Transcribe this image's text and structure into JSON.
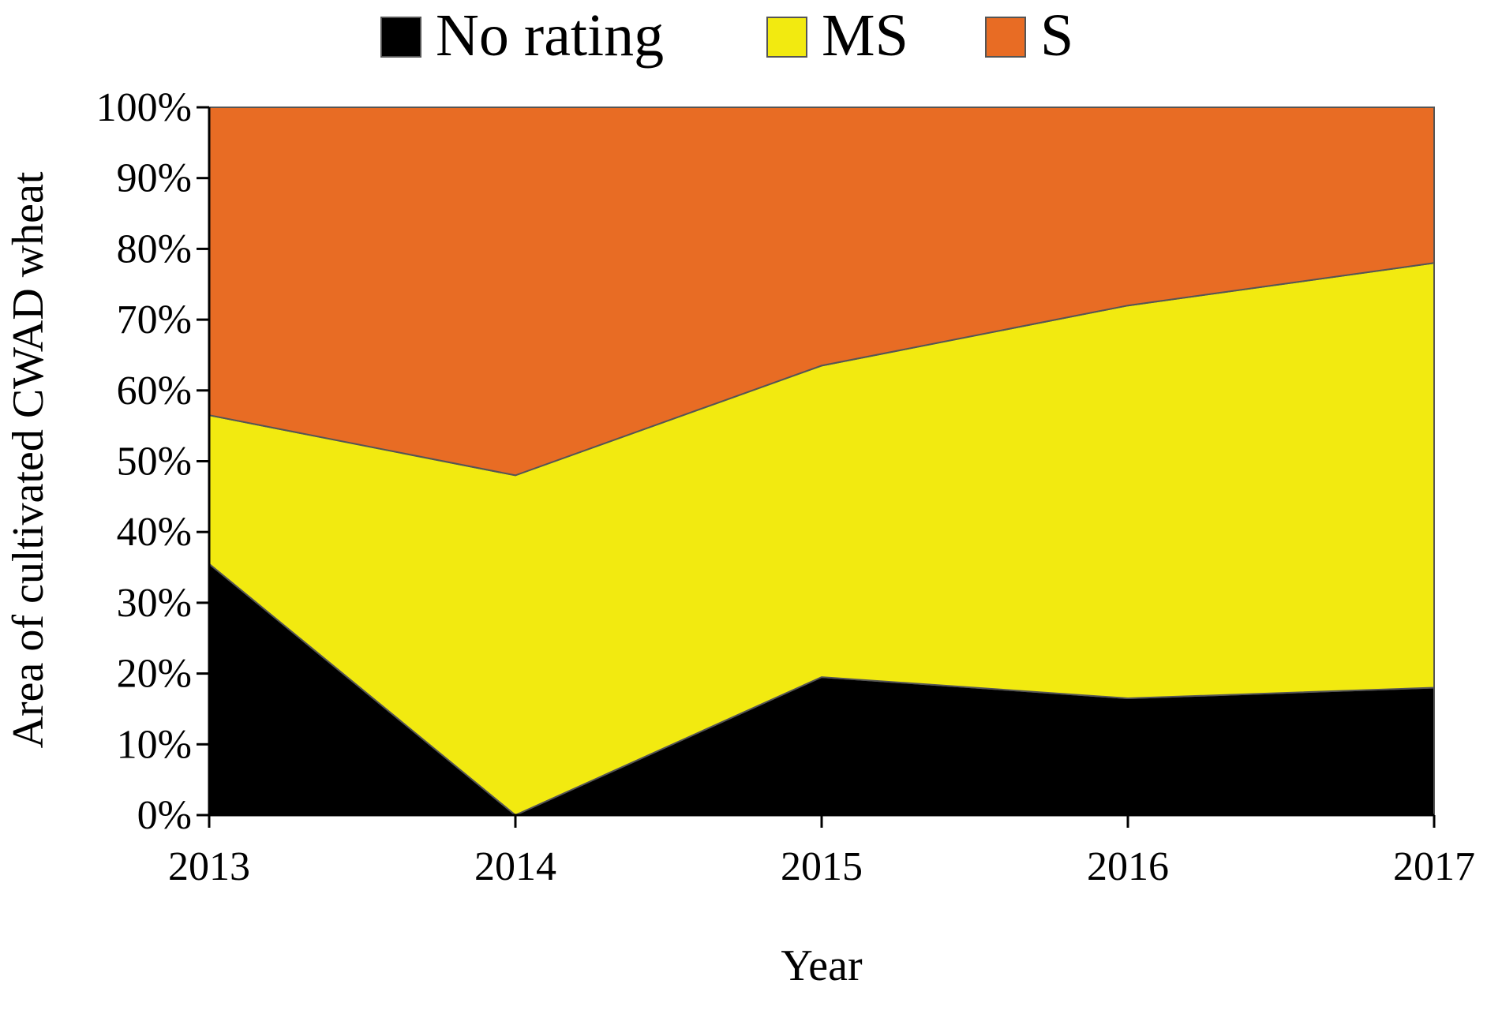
{
  "chart_data": {
    "type": "area",
    "stacked": true,
    "percent": true,
    "categories": [
      "2013",
      "2014",
      "2015",
      "2016",
      "2017"
    ],
    "series": [
      {
        "name": "No rating",
        "color": "#000000",
        "values": [
          35.5,
          0,
          19.5,
          16.5,
          18
        ]
      },
      {
        "name": "MS",
        "color": "#f2ea10",
        "values": [
          21,
          48,
          44,
          55.5,
          60
        ]
      },
      {
        "name": "S",
        "color": "#e86c24",
        "values": [
          43.5,
          52,
          36.5,
          28,
          22
        ]
      }
    ],
    "title": "",
    "xlabel": "Year",
    "ylabel": "Area of cultivated CWAD wheat",
    "ylim": [
      0,
      100
    ],
    "yticks": [
      "0%",
      "10%",
      "20%",
      "30%",
      "40%",
      "50%",
      "60%",
      "70%",
      "80%",
      "90%",
      "100%"
    ],
    "grid": false,
    "legend": "top"
  }
}
